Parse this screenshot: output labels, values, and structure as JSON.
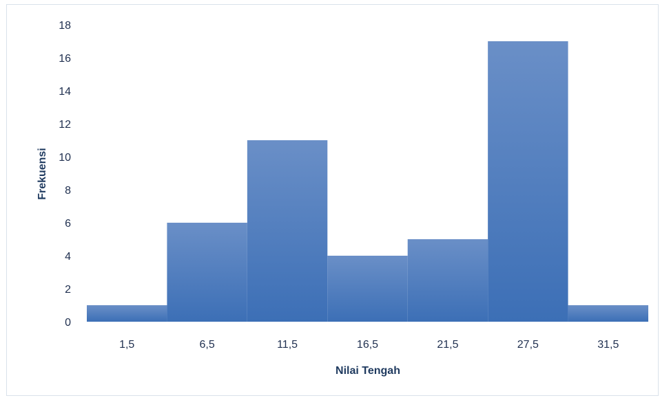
{
  "chart_data": {
    "type": "bar",
    "categories": [
      "1,5",
      "6,5",
      "11,5",
      "16,5",
      "21,5",
      "27,5",
      "31,5"
    ],
    "values": [
      1,
      6,
      11,
      4,
      5,
      17,
      1
    ],
    "title": "",
    "xlabel": "Nilai Tengah",
    "ylabel": "Frekuensi",
    "ylim": [
      0,
      18
    ],
    "yticks": [
      "0",
      "2",
      "4",
      "6",
      "8",
      "10",
      "12",
      "14",
      "16",
      "18"
    ],
    "grid": false,
    "bar_gap": 0,
    "bar_color_top": "#6a8fc7",
    "bar_color_bottom": "#3c6fb6"
  }
}
